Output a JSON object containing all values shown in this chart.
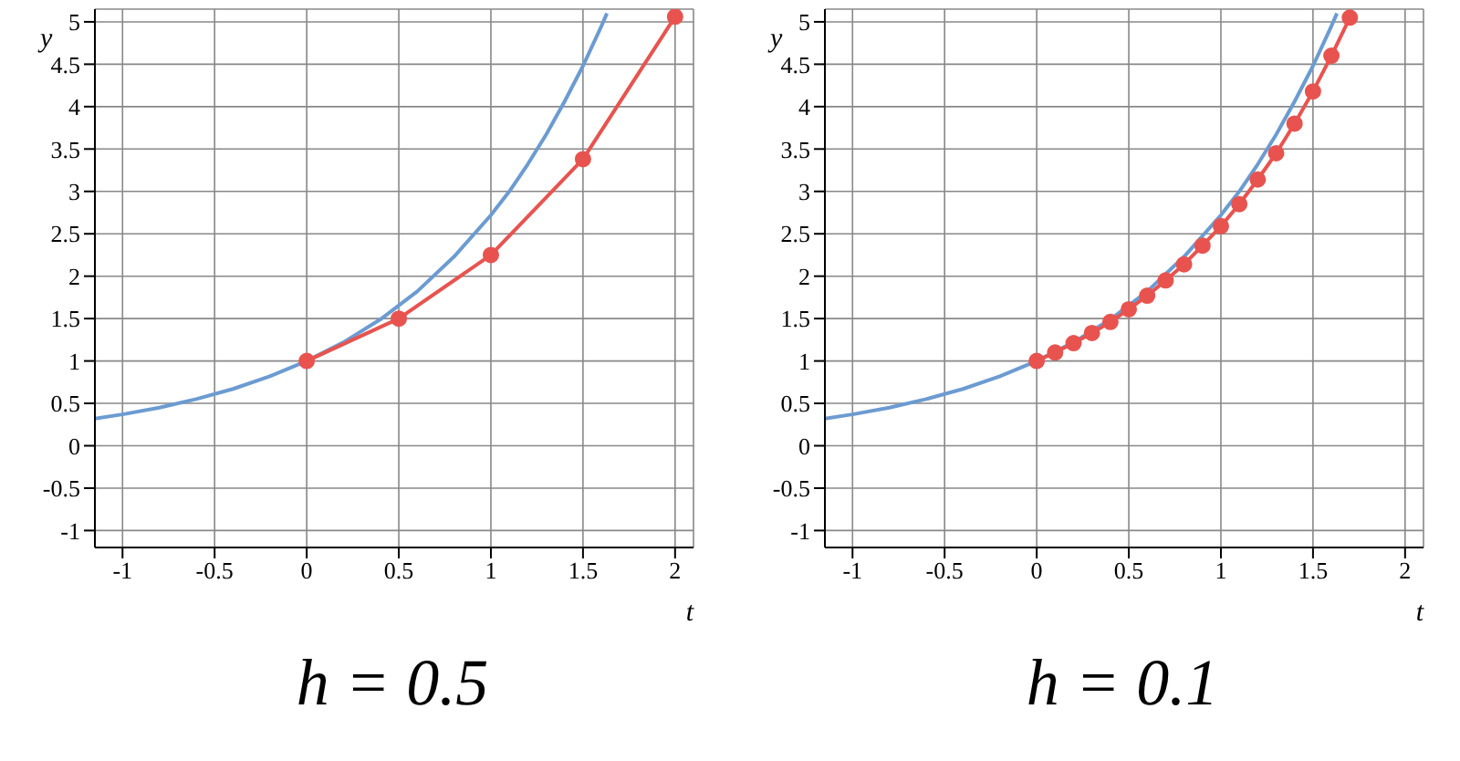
{
  "chart_data": [
    {
      "type": "line",
      "title": "h = 0.5",
      "xlabel": "t",
      "ylabel": "y",
      "xlim": [
        -1.15,
        2.1
      ],
      "ylim": [
        -1.2,
        5.15
      ],
      "xticks": [
        -1,
        -0.5,
        0,
        0.5,
        1,
        1.5,
        2
      ],
      "yticks": [
        -1,
        -0.5,
        0,
        0.5,
        1,
        1.5,
        2,
        2.5,
        3,
        3.5,
        4,
        4.5,
        5
      ],
      "grid": true,
      "series": [
        {
          "color": "#6b9bd1",
          "marker": "none",
          "x": [
            -1.15,
            -1,
            -0.8,
            -0.6,
            -0.4,
            -0.2,
            0,
            0.2,
            0.4,
            0.6,
            0.8,
            1,
            1.1,
            1.2,
            1.3,
            1.4,
            1.5,
            1.6,
            1.63
          ],
          "values": [
            0.32,
            0.37,
            0.45,
            0.55,
            0.67,
            0.82,
            1,
            1.22,
            1.49,
            1.82,
            2.23,
            2.72,
            3.0,
            3.32,
            3.67,
            4.06,
            4.48,
            4.95,
            5.1
          ]
        },
        {
          "color": "#e8534f",
          "marker": "circle",
          "x": [
            0,
            0.5,
            1,
            1.5,
            2
          ],
          "values": [
            1,
            1.5,
            2.25,
            3.38,
            5.06
          ]
        }
      ]
    },
    {
      "type": "line",
      "title": "h = 0.1",
      "xlabel": "t",
      "ylabel": "y",
      "xlim": [
        -1.15,
        2.1
      ],
      "ylim": [
        -1.2,
        5.15
      ],
      "xticks": [
        -1,
        -0.5,
        0,
        0.5,
        1,
        1.5,
        2
      ],
      "yticks": [
        -1,
        -0.5,
        0,
        0.5,
        1,
        1.5,
        2,
        2.5,
        3,
        3.5,
        4,
        4.5,
        5
      ],
      "grid": true,
      "series": [
        {
          "color": "#6b9bd1",
          "marker": "none",
          "x": [
            -1.15,
            -1,
            -0.8,
            -0.6,
            -0.4,
            -0.2,
            0,
            0.2,
            0.4,
            0.6,
            0.8,
            1,
            1.1,
            1.2,
            1.3,
            1.4,
            1.5,
            1.6,
            1.63
          ],
          "values": [
            0.32,
            0.37,
            0.45,
            0.55,
            0.67,
            0.82,
            1,
            1.22,
            1.49,
            1.82,
            2.23,
            2.72,
            3.0,
            3.32,
            3.67,
            4.06,
            4.48,
            4.95,
            5.1
          ]
        },
        {
          "color": "#e8534f",
          "marker": "circle",
          "x": [
            0,
            0.1,
            0.2,
            0.3,
            0.4,
            0.5,
            0.6,
            0.7,
            0.8,
            0.9,
            1,
            1.1,
            1.2,
            1.3,
            1.4,
            1.5,
            1.6,
            1.7
          ],
          "values": [
            1,
            1.1,
            1.21,
            1.33,
            1.46,
            1.61,
            1.77,
            1.95,
            2.14,
            2.36,
            2.59,
            2.85,
            3.14,
            3.45,
            3.8,
            4.18,
            4.6,
            5.05
          ]
        }
      ]
    }
  ]
}
